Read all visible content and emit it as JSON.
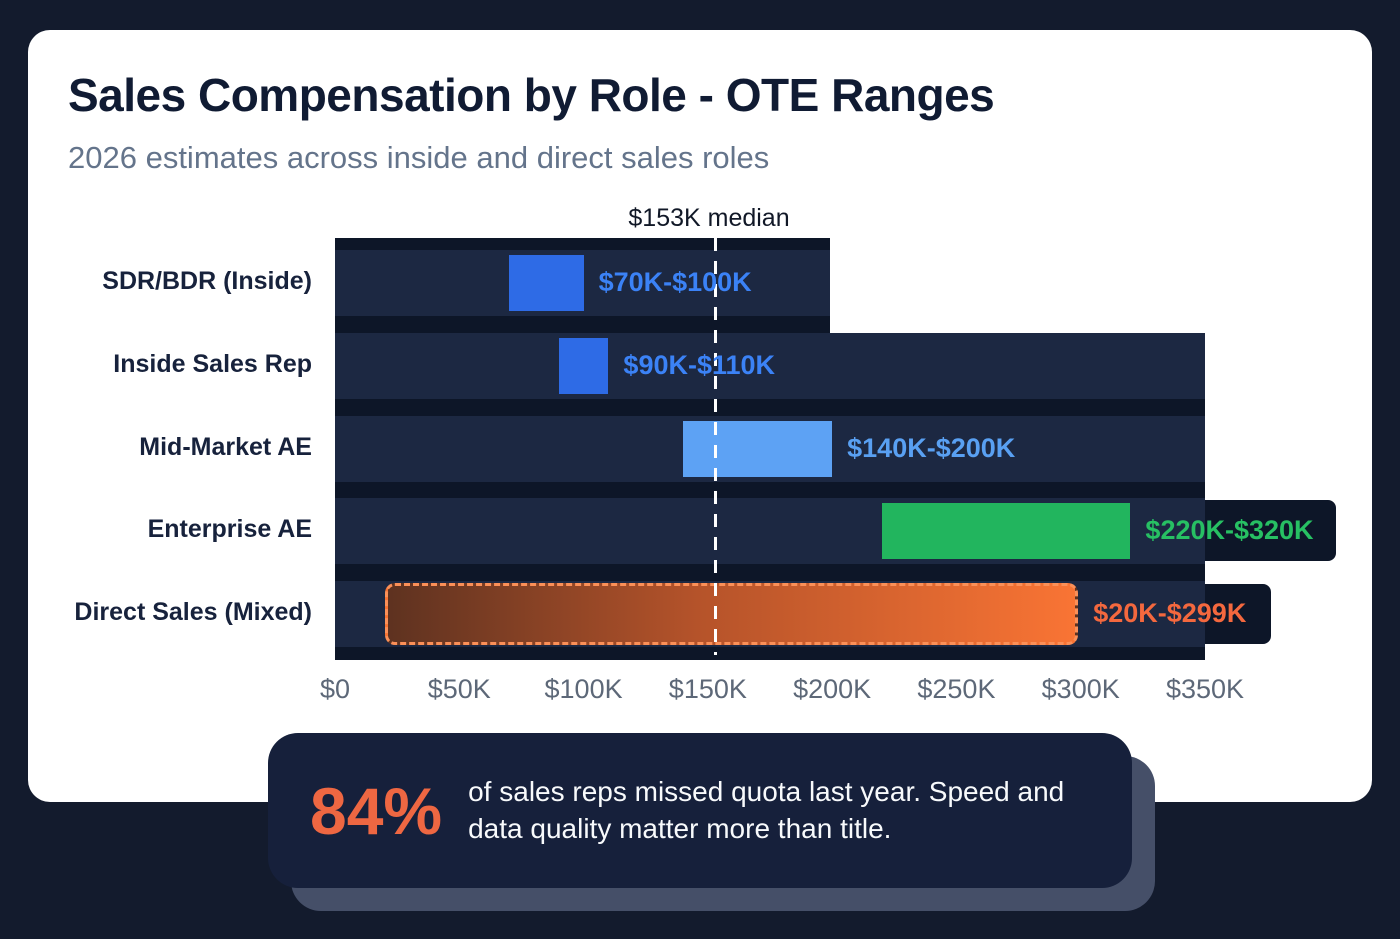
{
  "page": {
    "title": "Sales Compensation by Role - OTE Ranges",
    "subtitle": "2026 estimates across inside and direct sales roles"
  },
  "chart_data": {
    "type": "bar",
    "orientation": "horizontal",
    "title": "Sales Compensation by Role - OTE Ranges",
    "subtitle": "2026 estimates across inside and direct sales roles",
    "categories": [
      "SDR/BDR (Inside)",
      "Inside Sales Rep",
      "Mid-Market AE",
      "Enterprise AE",
      "Direct Sales (Mixed)"
    ],
    "ranges": [
      {
        "role": "SDR/BDR (Inside)",
        "min_k": 70,
        "max_k": 100,
        "label": "$70K-$100K",
        "color": "#2e6be6",
        "label_color": "#3b82f6"
      },
      {
        "role": "Inside Sales Rep",
        "min_k": 90,
        "max_k": 110,
        "label": "$90K-$110K",
        "color": "#2e6be6",
        "label_color": "#3b82f6"
      },
      {
        "role": "Mid-Market AE",
        "min_k": 140,
        "max_k": 200,
        "label": "$140K-$200K",
        "color": "#5da2f4",
        "label_color": "#59a0f2"
      },
      {
        "role": "Enterprise AE",
        "min_k": 220,
        "max_k": 320,
        "label": "$220K-$320K",
        "color": "#22b55e",
        "label_color": "#27c063"
      },
      {
        "role": "Direct Sales (Mixed)",
        "min_k": 20,
        "max_k": 299,
        "label": "$20K-$299K",
        "gradient": [
          "#5e3220",
          "#b5532a 45%",
          "#f97434"
        ],
        "label_color": "#f4683e",
        "dashed": true
      }
    ],
    "median": {
      "value_k": 153,
      "label": "$153K median"
    },
    "x_ticks": [
      "$0",
      "$50K",
      "$100K",
      "$150K",
      "$200K",
      "$250K",
      "$300K",
      "$350K"
    ],
    "x_tick_values_k": [
      0,
      50,
      100,
      150,
      200,
      250,
      300,
      350
    ],
    "xlim_k": [
      0,
      350
    ],
    "grid": false,
    "plot_background": "#0d1628",
    "row_track_color": "#1c2842",
    "median_line_color": "#ffffff"
  },
  "callout": {
    "stat": "84%",
    "text": "of sales reps missed quota last year. Speed and data quality matter more than title."
  }
}
